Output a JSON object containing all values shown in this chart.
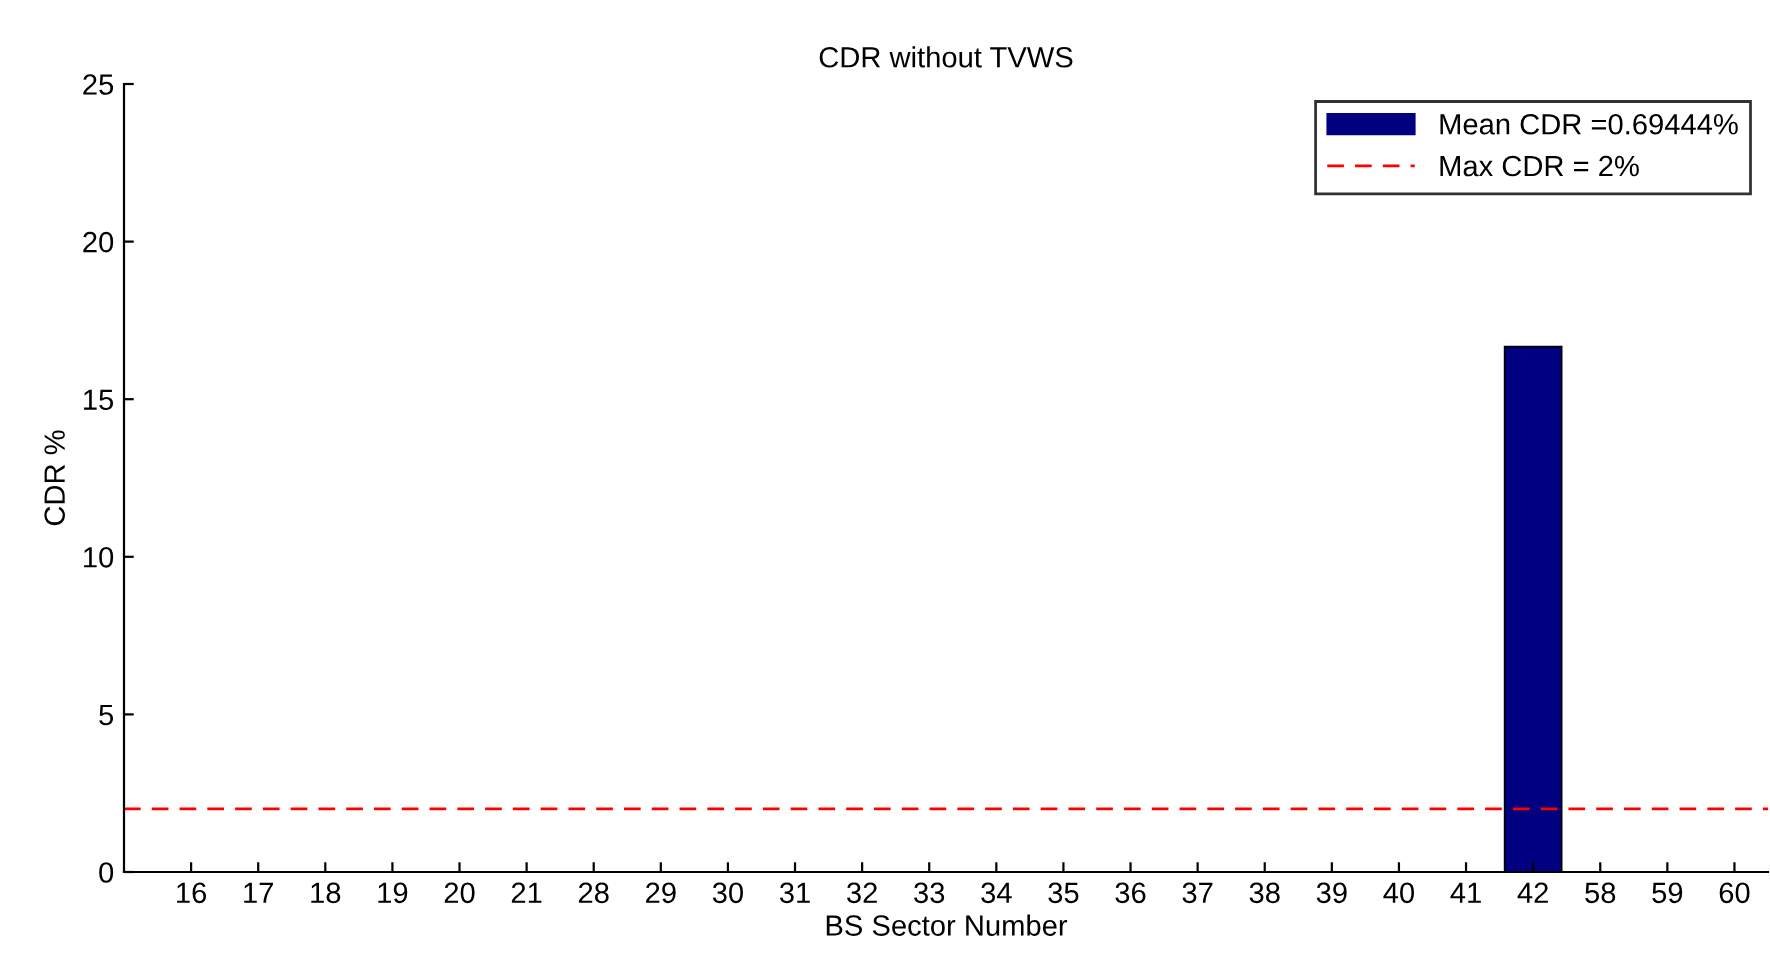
{
  "chart_data": {
    "type": "bar",
    "title": "CDR without TVWS",
    "xlabel": "BS Sector Number",
    "ylabel": "CDR %",
    "categories": [
      "16",
      "17",
      "18",
      "19",
      "20",
      "21",
      "28",
      "29",
      "30",
      "31",
      "32",
      "33",
      "34",
      "35",
      "36",
      "37",
      "38",
      "39",
      "40",
      "41",
      "42",
      "58",
      "59",
      "60"
    ],
    "series": [
      {
        "name": "Mean CDR =0.69444%",
        "color": "#000080",
        "values": [
          0,
          0,
          0,
          0,
          0,
          0,
          0,
          0,
          0,
          0,
          0,
          0,
          0,
          0,
          0,
          0,
          0,
          0,
          0,
          0,
          16.67,
          0,
          0,
          0
        ]
      }
    ],
    "ref_lines": [
      {
        "axis": "y",
        "value": 2,
        "label": "Max CDR = 2%",
        "color": "#ff0000",
        "line_style": "dashed"
      }
    ],
    "ylim": [
      0,
      25
    ],
    "yticks": [
      0,
      5,
      10,
      15,
      20,
      25
    ],
    "grid": false,
    "legend": "top right"
  }
}
